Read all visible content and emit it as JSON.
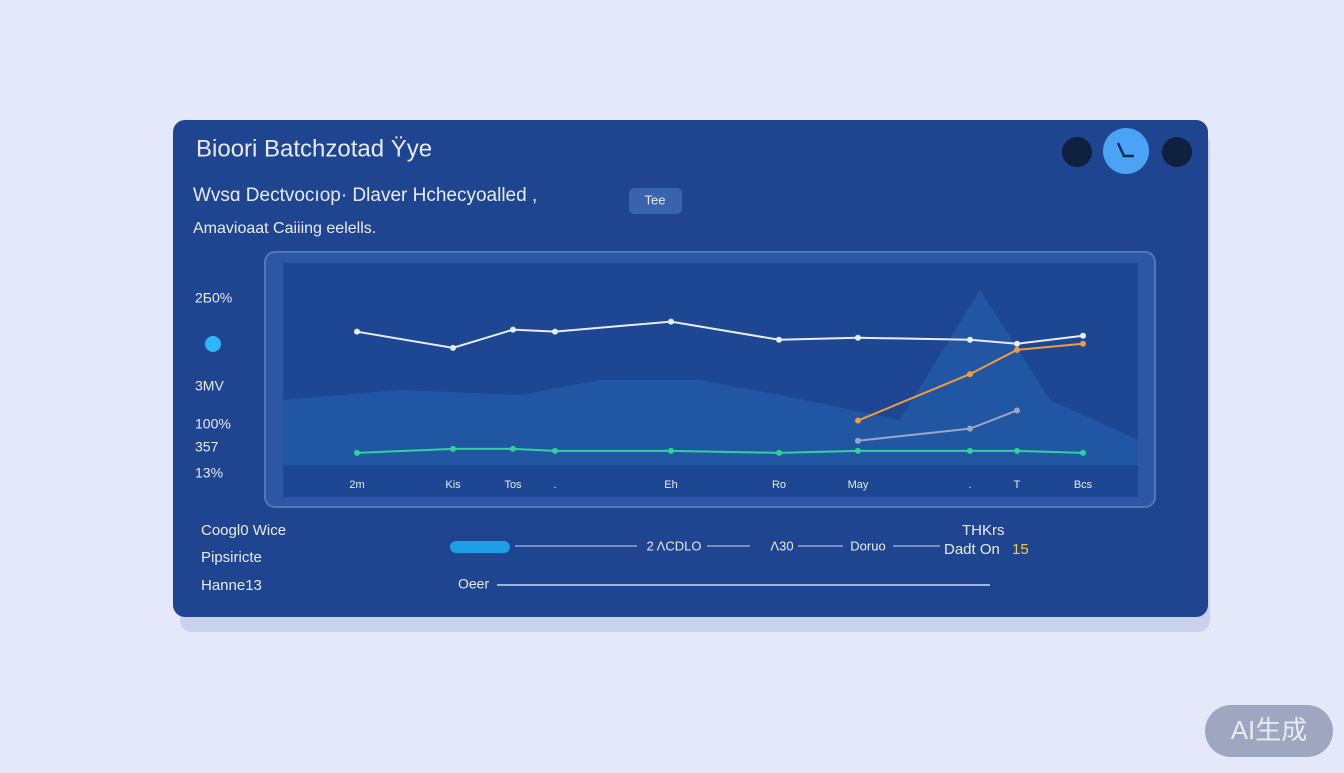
{
  "header": {
    "title": "Bioori Batchzotad Ÿye",
    "subtitle": "Wvsɑ Dectvocıop· Dlaver Hchecyoalled ,",
    "caption": "Amavioaat Caiiing eelells.",
    "tab": "Tee"
  },
  "side_labels": [
    "2Б0%",
    "3MV",
    "100%",
    "357",
    "13%"
  ],
  "chart_data": {
    "type": "line",
    "categories": [
      "2m",
      "Kis",
      "Tos",
      ".",
      "Eh",
      "Ro",
      "May",
      ".",
      "T",
      "Bcs"
    ],
    "ylim": [
      0,
      100
    ],
    "series": [
      {
        "color": "#e8ecf5",
        "values": [
          66,
          58,
          67,
          66,
          71,
          62,
          63,
          62,
          60,
          64
        ]
      },
      {
        "color": "#f39a3a",
        "values": [
          null,
          null,
          null,
          null,
          null,
          null,
          22,
          45,
          57,
          60
        ]
      },
      {
        "color": "#2fd39a",
        "values": [
          6,
          8,
          8,
          7,
          7,
          6,
          7,
          7,
          7,
          6
        ]
      },
      {
        "color": "#9aa6c8",
        "values": [
          null,
          null,
          null,
          null,
          null,
          null,
          12,
          18,
          27,
          null
        ]
      }
    ]
  },
  "footer": {
    "items": [
      "Coogl0 Wice",
      "Pipsiricte",
      "Hanne13"
    ],
    "slider_labels": [
      "2 ΛCDLO",
      "Λ30",
      "Doruo"
    ],
    "side_title": "THKrs",
    "side_value": "Dadt On",
    "side_number": "15",
    "slider2_label": "Oeer"
  },
  "watermark": "AI生成"
}
